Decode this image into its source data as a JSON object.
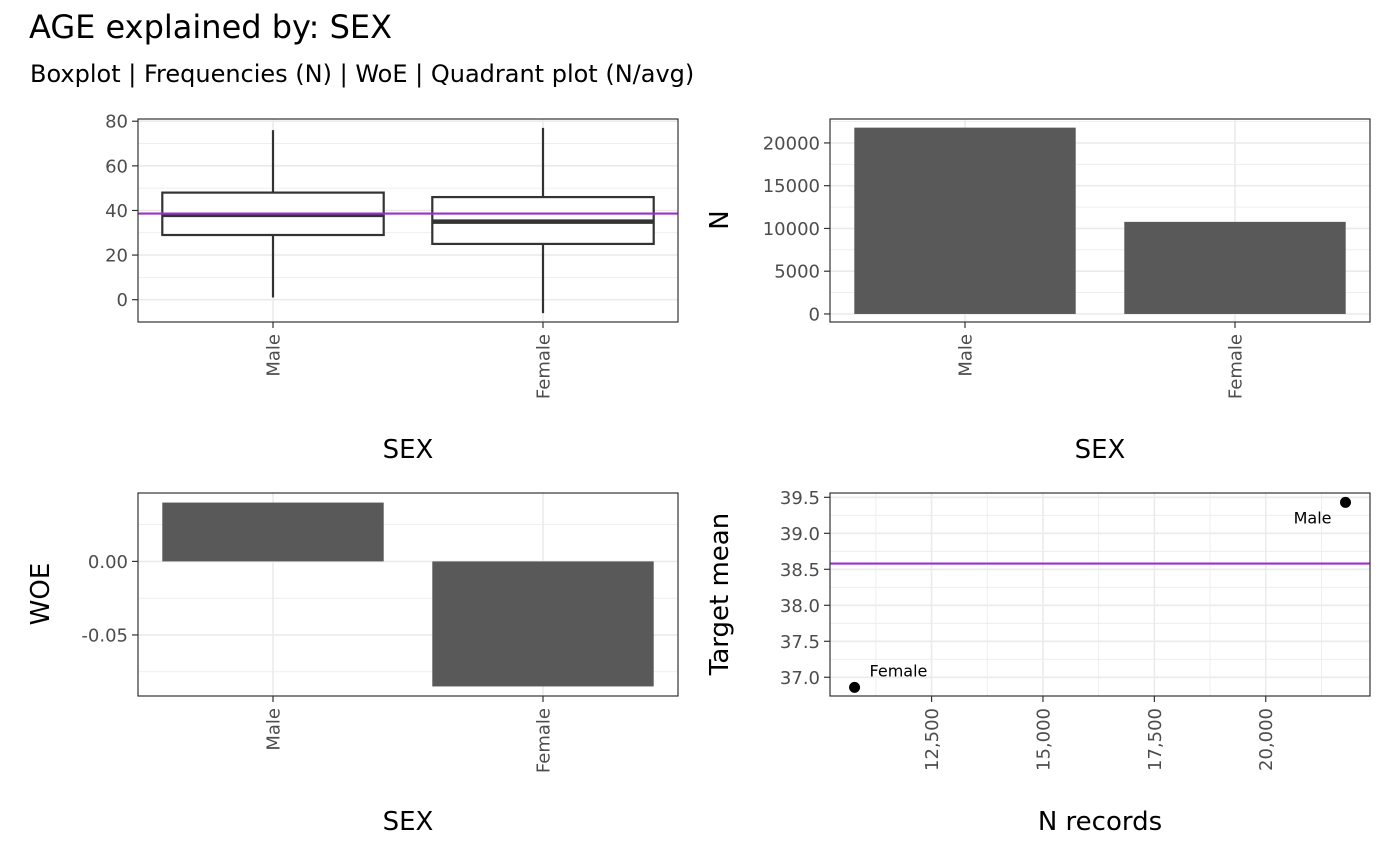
{
  "title": "AGE explained by: SEX",
  "subtitle": "Boxplot | Frequencies (N) | WoE | Quadrant plot (N/avg)",
  "colors": {
    "bar": "#595959",
    "reference_line": "#9932CC",
    "box_stroke": "#333333",
    "panel_border": "#333333",
    "grid": "#ebebeb",
    "point": "#000000"
  },
  "chart_data": [
    {
      "type": "boxplot",
      "categories": [
        "Male",
        "Female"
      ],
      "boxes": [
        {
          "category": "Male",
          "whisker_low": 1,
          "q1": 29,
          "median": 38,
          "q3": 48,
          "whisker_high": 76
        },
        {
          "category": "Female",
          "whisker_low": -6,
          "q1": 25,
          "median": 35,
          "q3": 46,
          "whisker_high": 77
        }
      ],
      "reference_line": 38.6,
      "xlabel": "SEX",
      "ylabel": "",
      "ylim": [
        -10,
        81
      ],
      "yticks": [
        0,
        20,
        40,
        60,
        80
      ],
      "yticks_minor": [
        -10,
        10,
        30,
        50,
        70
      ],
      "grid": true
    },
    {
      "type": "bar",
      "categories": [
        "Male",
        "Female"
      ],
      "values": [
        21790,
        10771
      ],
      "xlabel": "SEX",
      "ylabel": "N",
      "ylim": [
        -940,
        22800
      ],
      "yticks": [
        0,
        5000,
        10000,
        15000,
        20000
      ],
      "yticks_minor": [
        2500,
        7500,
        12500,
        17500,
        22500
      ],
      "grid": true
    },
    {
      "type": "bar",
      "categories": [
        "Male",
        "Female"
      ],
      "values": [
        0.04,
        -0.085
      ],
      "xlabel": "SEX",
      "ylabel": "WOE",
      "ylim": [
        -0.0915,
        0.0465
      ],
      "yticks": [
        0.0,
        -0.05
      ],
      "ytick_labels": [
        "0.00",
        "-0.05"
      ],
      "yticks_minor": [
        0.025,
        -0.025,
        -0.075
      ],
      "grid": true
    },
    {
      "type": "scatter",
      "points": [
        {
          "label": "Male",
          "x": 21790,
          "y": 39.43
        },
        {
          "label": "Female",
          "x": 10771,
          "y": 36.86
        }
      ],
      "reference_line": 38.58,
      "xlabel": "N records",
      "ylabel": "Target mean",
      "xlim": [
        10220,
        22340
      ],
      "ylim": [
        36.74,
        39.56
      ],
      "xticks": [
        12500,
        15000,
        17500,
        20000
      ],
      "xtick_labels": [
        "12,500",
        "15,000",
        "17,500",
        "20,000"
      ],
      "xticks_minor": [
        11250,
        13750,
        16250,
        18750,
        21250
      ],
      "yticks": [
        37.0,
        37.5,
        38.0,
        38.5,
        39.0,
        39.5
      ],
      "ytick_labels": [
        "37.0",
        "37.5",
        "38.0",
        "38.5",
        "39.0",
        "39.5"
      ],
      "yticks_minor": [
        37.25,
        37.75,
        38.25,
        38.75,
        39.25
      ],
      "grid": true
    }
  ]
}
